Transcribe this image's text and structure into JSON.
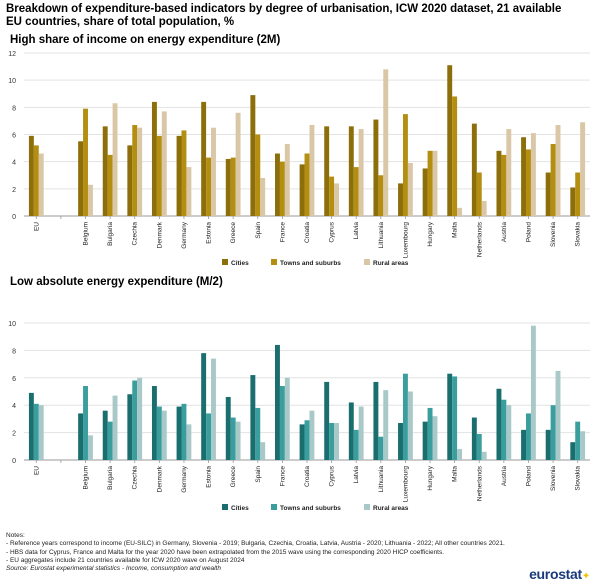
{
  "page": {
    "title": "Breakdown of expenditure-based indicators by degree of urbanisation, ICW 2020 dataset, 21 available EU countries, share of total population, %",
    "notes_heading": "Notes:",
    "notes": [
      "- Reference years correspond to income (EU-SILC) in Germany, Slovenia - 2019; Bulgaria, Czechia, Croatia, Latvia, Austria - 2020; Lithuania - 2022; All other countries 2021.",
      "- HBS data for Cyprus, France and Malta for the year 2020 have been extrapolated from the 2015 wave using the corresponding 2020 HICP coefficients.",
      "- EU aggregates include 21 countries available for ICW 2020 wave on August 2024"
    ],
    "source": "Source: Eurostat experimental statistics - Income, consumption and wealth",
    "logo": "eurostat"
  },
  "chart_data": [
    {
      "type": "bar",
      "title": "High share of income on energy expenditure (2M)",
      "xlabel": "",
      "ylabel": "",
      "ylim": [
        0,
        12
      ],
      "yticks": [
        0,
        2,
        4,
        6,
        8,
        10,
        12
      ],
      "grid": true,
      "legend_position": "bottom",
      "colors": [
        "#8c6f0b",
        "#b38e10",
        "#d9c7a6"
      ],
      "categories": [
        "EU",
        "",
        "Belgium",
        "Bulgaria",
        "Czechia",
        "Denmark",
        "Germany",
        "Estonia",
        "Greece",
        "Spain",
        "France",
        "Croatia",
        "Cyprus",
        "Latvia",
        "Lithuania",
        "Luxembourg",
        "Hungary",
        "Malta",
        "Netherlands",
        "Austria",
        "Poland",
        "Slovenia",
        "Slovakia"
      ],
      "series": [
        {
          "name": "Cities",
          "values": [
            5.9,
            null,
            5.5,
            6.6,
            5.2,
            8.4,
            5.9,
            8.4,
            4.2,
            8.9,
            4.6,
            3.8,
            6.6,
            6.6,
            7.1,
            2.4,
            3.5,
            11.1,
            6.8,
            4.8,
            5.8,
            3.2,
            2.1
          ]
        },
        {
          "name": "Towns and suburbs",
          "values": [
            5.2,
            null,
            7.9,
            4.5,
            6.7,
            5.9,
            6.3,
            4.3,
            4.3,
            6.0,
            4.0,
            4.6,
            2.9,
            3.6,
            3.0,
            7.5,
            4.8,
            8.8,
            3.2,
            4.5,
            4.9,
            5.3,
            3.2
          ]
        },
        {
          "name": "Rural areas",
          "values": [
            4.6,
            null,
            2.3,
            8.3,
            6.5,
            7.7,
            3.6,
            6.5,
            7.6,
            2.8,
            5.3,
            6.7,
            2.4,
            6.4,
            10.8,
            3.9,
            4.8,
            0.6,
            1.1,
            6.4,
            6.1,
            6.7,
            6.9
          ]
        }
      ]
    },
    {
      "type": "bar",
      "title": "Low absolute energy expenditure (M/2)",
      "xlabel": "",
      "ylabel": "",
      "ylim": [
        0,
        10
      ],
      "yticks": [
        0,
        2,
        4,
        6,
        8,
        10
      ],
      "grid": true,
      "legend_position": "bottom",
      "colors": [
        "#1b6e6e",
        "#3a9e9e",
        "#a9c9c9"
      ],
      "categories": [
        "EU",
        "",
        "Belgium",
        "Bulgaria",
        "Czechia",
        "Denmark",
        "Germany",
        "Estonia",
        "Greece",
        "Spain",
        "France",
        "Croatia",
        "Cyprus",
        "Latvia",
        "Lithuania",
        "Luxembourg",
        "Hungary",
        "Malta",
        "Netherlands",
        "Austria",
        "Poland",
        "Slovenia",
        "Slovakia"
      ],
      "series": [
        {
          "name": "Cities",
          "values": [
            4.9,
            null,
            3.4,
            3.6,
            4.8,
            5.4,
            3.9,
            7.8,
            4.6,
            6.2,
            8.4,
            2.6,
            5.7,
            4.2,
            5.7,
            2.7,
            2.8,
            6.3,
            3.1,
            5.2,
            2.2,
            2.2,
            1.3
          ]
        },
        {
          "name": "Towns and suburbs",
          "values": [
            4.1,
            null,
            5.4,
            2.8,
            5.8,
            3.9,
            4.1,
            3.4,
            3.1,
            3.8,
            5.4,
            2.9,
            2.7,
            2.2,
            1.7,
            6.3,
            3.8,
            6.1,
            1.9,
            4.4,
            3.4,
            4.0,
            2.8
          ]
        },
        {
          "name": "Rural areas",
          "values": [
            4.0,
            null,
            1.8,
            4.7,
            6.0,
            3.6,
            2.6,
            7.4,
            2.8,
            1.3,
            6.0,
            3.6,
            2.7,
            3.9,
            5.1,
            5.0,
            3.2,
            0.8,
            0.6,
            4.0,
            9.8,
            6.5,
            2.1
          ]
        }
      ]
    }
  ]
}
